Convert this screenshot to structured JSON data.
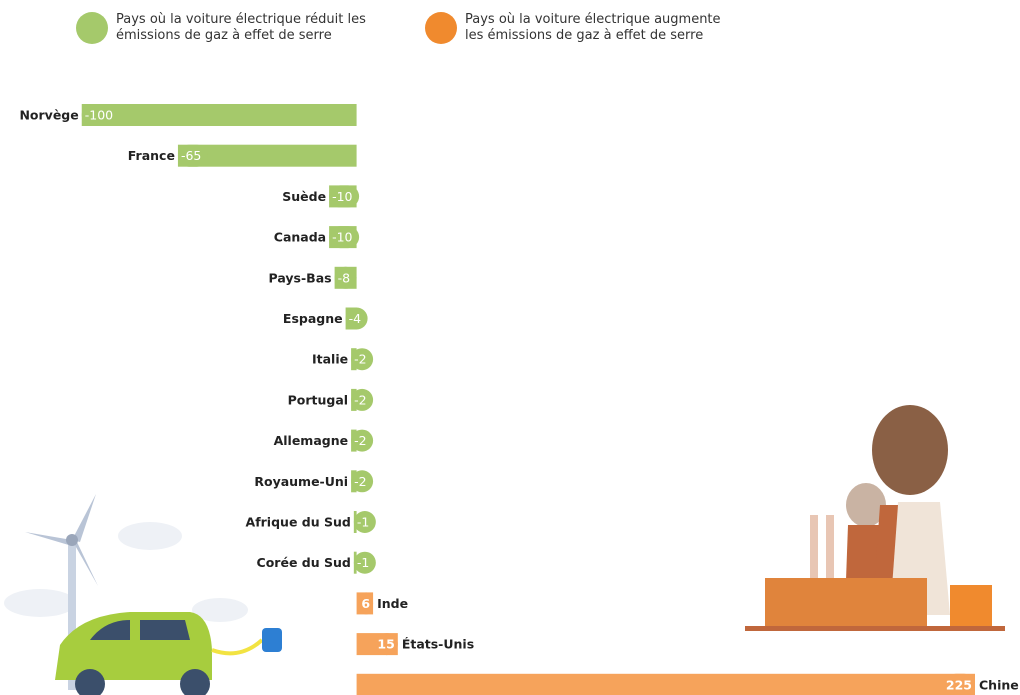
{
  "chart_data": {
    "type": "bar",
    "categories": [
      "Norvège",
      "France",
      "Suède",
      "Canada",
      "Pays-Bas",
      "Espagne",
      "Italie",
      "Portugal",
      "Allemagne",
      "Royaume-Uni",
      "Afrique du Sud",
      "Corée du Sud",
      "Inde",
      "États-Unis",
      "Chine"
    ],
    "series": [
      {
        "name": "Pays où la voiture électrique réduit les émissions de gaz à effet de serre",
        "color": "#a5c96b",
        "values": [
          -100,
          -65,
          -10,
          -10,
          -8,
          -4,
          -2,
          -2,
          -2,
          -2,
          -1,
          -1,
          null,
          null,
          null
        ]
      },
      {
        "name": "Pays où la voiture électrique augmente les émissions de gaz à effet de serre",
        "color": "#f6a35b",
        "values": [
          null,
          null,
          null,
          null,
          null,
          null,
          null,
          null,
          null,
          null,
          null,
          null,
          6,
          15,
          225
        ]
      }
    ],
    "xlim": [
      -105,
      225
    ]
  }
}
